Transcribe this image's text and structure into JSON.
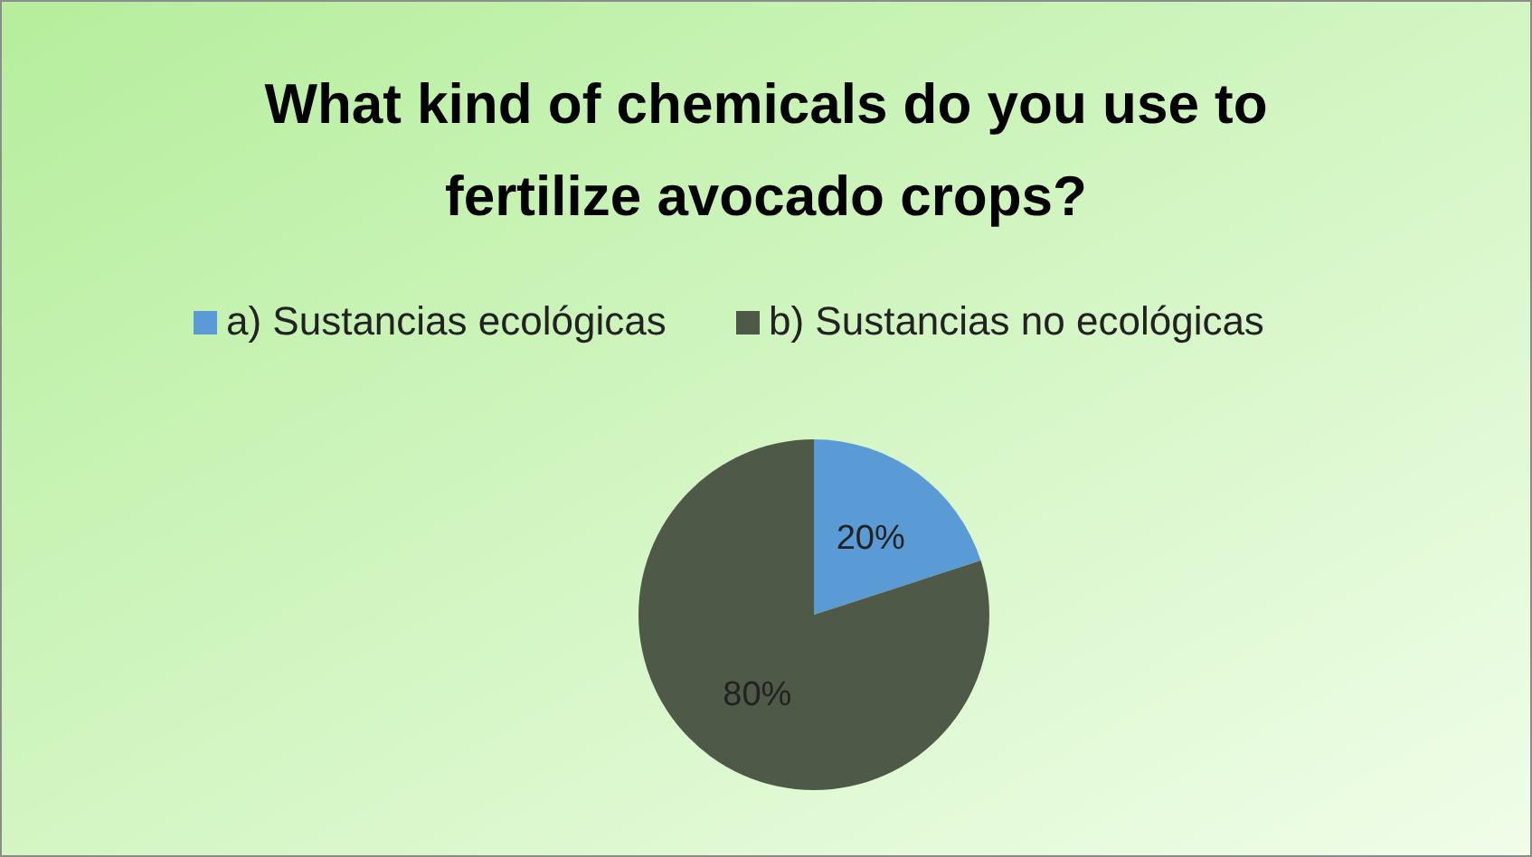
{
  "chart_data": {
    "type": "pie",
    "title": "What kind of chemicals do you use to fertilize avocado crops?",
    "categories": [
      "a) Sustancias ecológicas",
      "b) Sustancias no ecológicas"
    ],
    "values": [
      20,
      80
    ],
    "colors": [
      "#5b9bd5",
      "#4e5a47"
    ],
    "value_labels": [
      "20%",
      "80%"
    ],
    "legend": "top"
  }
}
